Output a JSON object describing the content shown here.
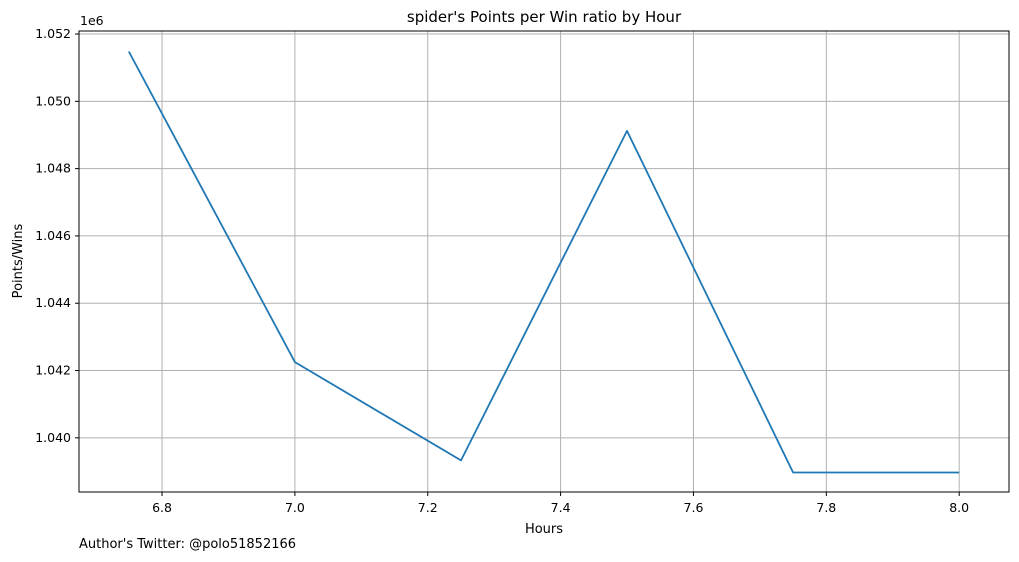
{
  "chart_data": {
    "type": "line",
    "title": "spider's Points per Win ratio by Hour",
    "xlabel": "Hours",
    "ylabel": "Points/Wins",
    "y_offset_label": "1e6",
    "xlim": [
      6.675,
      8.075
    ],
    "ylim": [
      1.03839,
      1.05209
    ],
    "xticks": [
      6.8,
      7.0,
      7.2,
      7.4,
      7.6,
      7.8,
      8.0
    ],
    "xtick_labels": [
      "6.8",
      "7.0",
      "7.2",
      "7.4",
      "7.6",
      "7.8",
      "8.0"
    ],
    "yticks": [
      1.04,
      1.042,
      1.044,
      1.046,
      1.048,
      1.05,
      1.052
    ],
    "ytick_labels": [
      "1.040",
      "1.042",
      "1.044",
      "1.046",
      "1.048",
      "1.050",
      "1.052"
    ],
    "grid": true,
    "series": [
      {
        "color": "#1f77b4",
        "x": [
          6.75,
          7.0,
          7.25,
          7.5,
          7.75,
          8.0
        ],
        "y": [
          1.05148,
          1.04225,
          1.03933,
          1.04912,
          1.03897,
          1.03897
        ]
      }
    ]
  },
  "footer": {
    "author": "Author's Twitter: @polo51852166"
  }
}
